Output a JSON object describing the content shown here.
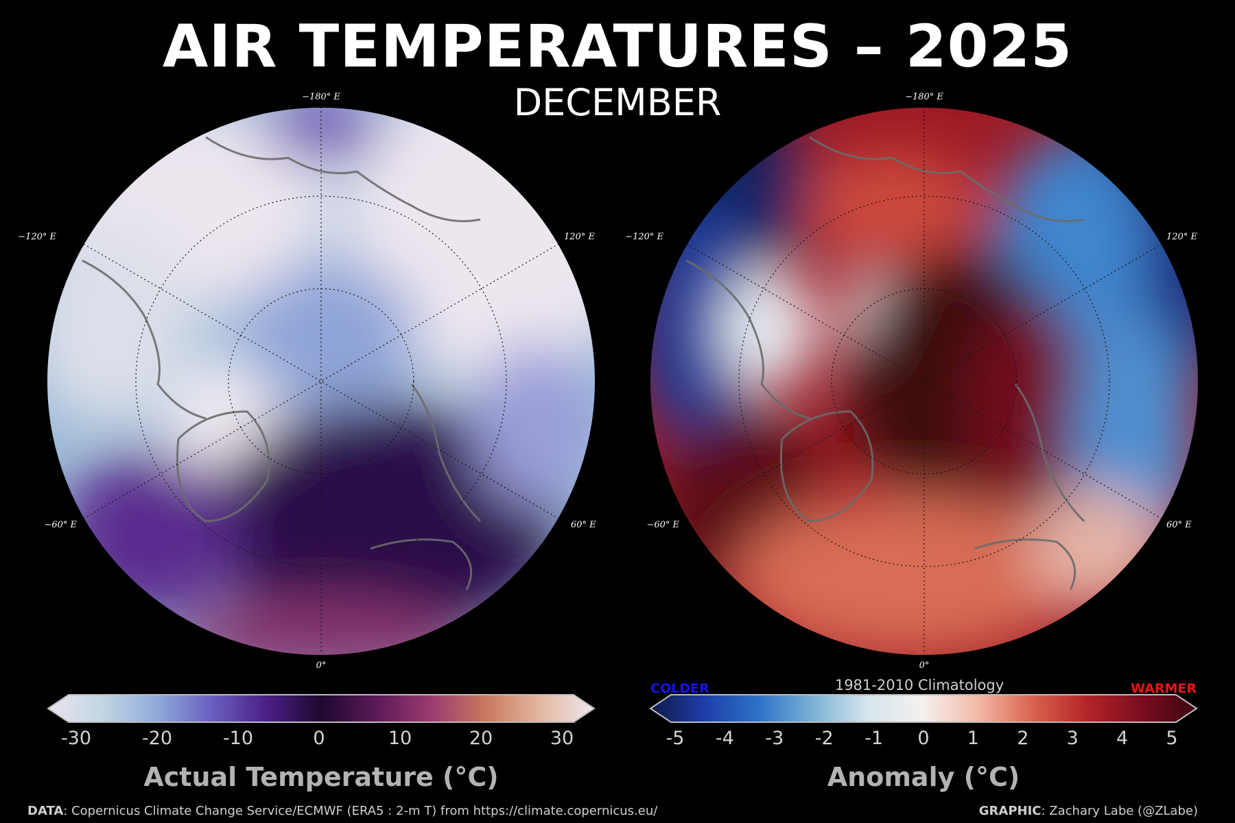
{
  "header": {
    "title": "AIR TEMPERATURES – 2025",
    "subtitle": "DECEMBER"
  },
  "maps": {
    "longitude_labels": {
      "top": "−180° E",
      "upper_left": "−120° E",
      "upper_right": "120° E",
      "lower_left": "−60° E",
      "lower_right": "60° E",
      "bottom": "0°"
    },
    "actual": {
      "colorbar_title": "Actual Temperature (°C)",
      "ticks": [
        "-30",
        "-20",
        "-10",
        "0",
        "10",
        "20",
        "30"
      ],
      "range": [
        -30,
        30
      ],
      "colors": [
        "#ece4ee",
        "#c2d6e3",
        "#8fa9d9",
        "#6a5fc0",
        "#4b1f86",
        "#1e0830",
        "#5a1a57",
        "#9a3a70",
        "#c9785e",
        "#e3b7a0",
        "#efe6ee"
      ]
    },
    "anomaly": {
      "colorbar_title": "Anomaly (°C)",
      "ticks": [
        "-5",
        "-4",
        "-3",
        "-2",
        "-1",
        "0",
        "1",
        "2",
        "3",
        "4",
        "5"
      ],
      "range": [
        -5,
        5
      ],
      "climatology_label": "1981-2010 Climatology",
      "colder_label": "COLDER",
      "warmer_label": "WARMER",
      "colors": [
        "#0f1a4a",
        "#1e3ea8",
        "#2e74c9",
        "#7fb3d5",
        "#d7e6ee",
        "#f5f0ef",
        "#f2b9a6",
        "#d9634e",
        "#b32428",
        "#7a0d1f",
        "#3a0612"
      ]
    }
  },
  "footer": {
    "data_label": "DATA",
    "data_text": ": Copernicus Climate Change Service/ECMWF (ERA5 : 2-m T) from https://climate.copernicus.eu/",
    "graphic_label": "GRAPHIC",
    "graphic_text": ": Zachary Labe (@ZLabe)"
  }
}
